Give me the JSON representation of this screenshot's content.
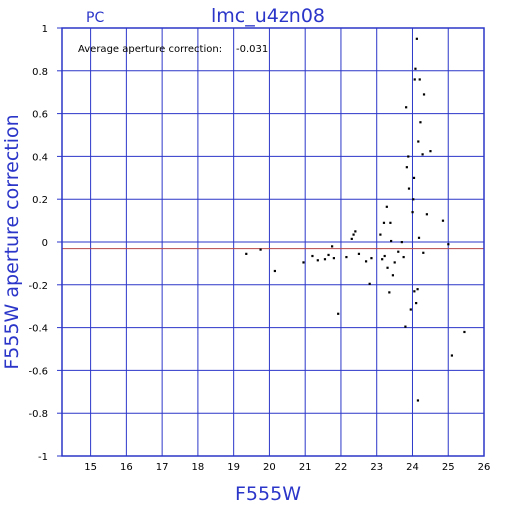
{
  "header": {
    "camera": "PC",
    "title": "lmc_u4zn08"
  },
  "annotation": {
    "label": "Average aperture correction:",
    "value": "-0.031"
  },
  "colors": {
    "axis": "#2b36c9",
    "grid": "#2b36c9",
    "zero_line": "#2b36c9",
    "mean_line": "#b84444",
    "points": "#000000"
  },
  "chart_data": {
    "type": "scatter",
    "title": "lmc_u4zn08",
    "xlabel": "F555W",
    "ylabel": "F555W aperture correction",
    "xlim": [
      14.2,
      26.0
    ],
    "ylim": [
      -1.0,
      1.0
    ],
    "xticks": [
      15,
      16,
      17,
      18,
      19,
      20,
      21,
      22,
      23,
      24,
      25,
      26
    ],
    "yticks": [
      -1,
      -0.8,
      -0.6,
      -0.4,
      -0.2,
      0,
      0.2,
      0.4,
      0.6,
      0.8,
      1
    ],
    "ytick_labels": [
      "-1",
      "-0.8",
      "-0.6",
      "-0.4",
      "-0.2",
      "0",
      "0.2",
      "0.4",
      "0.6",
      "0.8",
      "1"
    ],
    "grid": true,
    "hlines": {
      "zero": 0,
      "mean": -0.031
    },
    "points": [
      [
        19.35,
        -0.055
      ],
      [
        19.75,
        -0.035
      ],
      [
        20.15,
        -0.135
      ],
      [
        20.95,
        -0.095
      ],
      [
        21.2,
        -0.065
      ],
      [
        21.35,
        -0.085
      ],
      [
        21.55,
        -0.08
      ],
      [
        21.65,
        -0.06
      ],
      [
        21.75,
        -0.02
      ],
      [
        21.8,
        -0.075
      ],
      [
        21.92,
        -0.335
      ],
      [
        22.15,
        -0.07
      ],
      [
        22.3,
        0.015
      ],
      [
        22.35,
        0.035
      ],
      [
        22.4,
        0.05
      ],
      [
        22.5,
        -0.055
      ],
      [
        22.7,
        -0.09
      ],
      [
        22.8,
        -0.195
      ],
      [
        22.85,
        -0.075
      ],
      [
        23.1,
        0.035
      ],
      [
        23.15,
        -0.08
      ],
      [
        23.2,
        0.09
      ],
      [
        23.22,
        -0.065
      ],
      [
        23.28,
        0.165
      ],
      [
        23.3,
        -0.12
      ],
      [
        23.35,
        -0.235
      ],
      [
        23.38,
        0.09
      ],
      [
        23.4,
        0.005
      ],
      [
        23.45,
        -0.155
      ],
      [
        23.5,
        -0.095
      ],
      [
        23.6,
        -0.045
      ],
      [
        23.7,
        0.0
      ],
      [
        23.75,
        -0.07
      ],
      [
        23.8,
        -0.395
      ],
      [
        23.82,
        0.63
      ],
      [
        23.84,
        0.35
      ],
      [
        23.88,
        0.4
      ],
      [
        23.9,
        0.25
      ],
      [
        23.95,
        -0.315
      ],
      [
        24.0,
        0.14
      ],
      [
        24.02,
        0.2
      ],
      [
        24.04,
        0.3
      ],
      [
        24.06,
        0.76
      ],
      [
        24.08,
        0.81
      ],
      [
        24.05,
        -0.23
      ],
      [
        24.1,
        -0.285
      ],
      [
        24.12,
        0.95
      ],
      [
        24.14,
        -0.22
      ],
      [
        24.16,
        0.47
      ],
      [
        24.18,
        0.02
      ],
      [
        24.2,
        0.76
      ],
      [
        24.22,
        0.56
      ],
      [
        24.15,
        -0.74
      ],
      [
        24.28,
        0.41
      ],
      [
        24.3,
        -0.05
      ],
      [
        24.32,
        0.69
      ],
      [
        24.4,
        0.13
      ],
      [
        24.5,
        0.425
      ],
      [
        24.85,
        0.1
      ],
      [
        25.0,
        -0.01
      ],
      [
        25.1,
        -0.53
      ],
      [
        25.45,
        -0.42
      ]
    ]
  }
}
